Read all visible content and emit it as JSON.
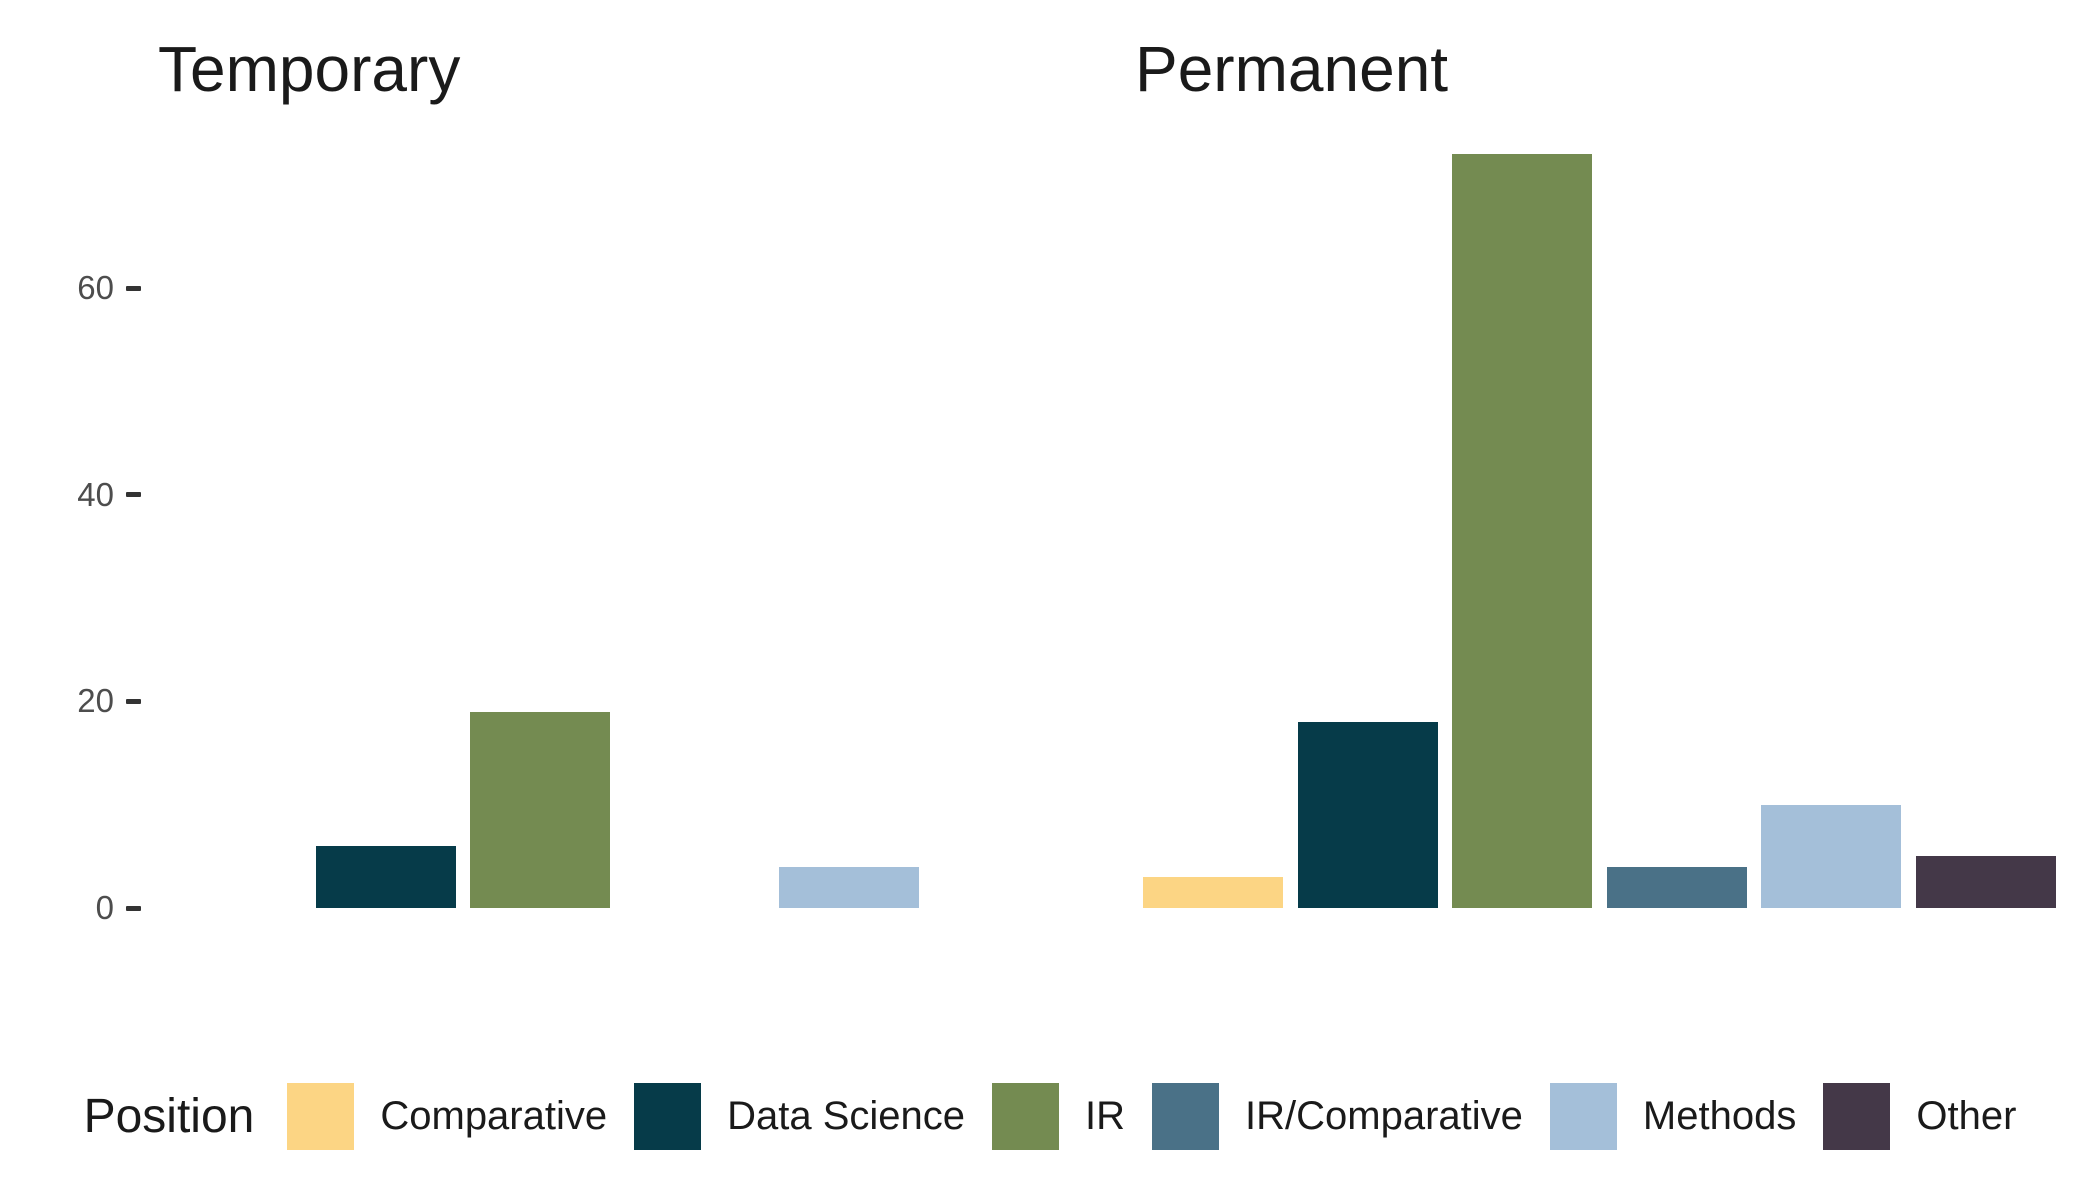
{
  "chart_data": {
    "type": "bar",
    "title": "",
    "xlabel": "",
    "ylabel": "",
    "grid": false,
    "legend_title": "Position",
    "legend_position": "bottom",
    "y_ticks": [
      0,
      20,
      40,
      60
    ],
    "ylim": [
      0,
      75
    ],
    "categories": [
      "Comparative",
      "Data Science",
      "IR",
      "IR/Comparative",
      "Methods",
      "Other"
    ],
    "colors": [
      "#FCD584",
      "#063B49",
      "#748B51",
      "#4A7187",
      "#A4BFD9",
      "#443848"
    ],
    "facets": [
      {
        "label": "Temporary",
        "values": [
          0,
          6,
          19,
          0,
          4,
          0
        ]
      },
      {
        "label": "Permanent",
        "values": [
          3,
          18,
          73,
          4,
          10,
          5
        ]
      }
    ]
  },
  "style_colors": {
    "background": "#FFFFFF",
    "facet_title_text": "#1A1A1A",
    "tick_label_text": "#4D4D4D",
    "tick_mark": "#333333",
    "legend_text": "#1A1A1A"
  }
}
